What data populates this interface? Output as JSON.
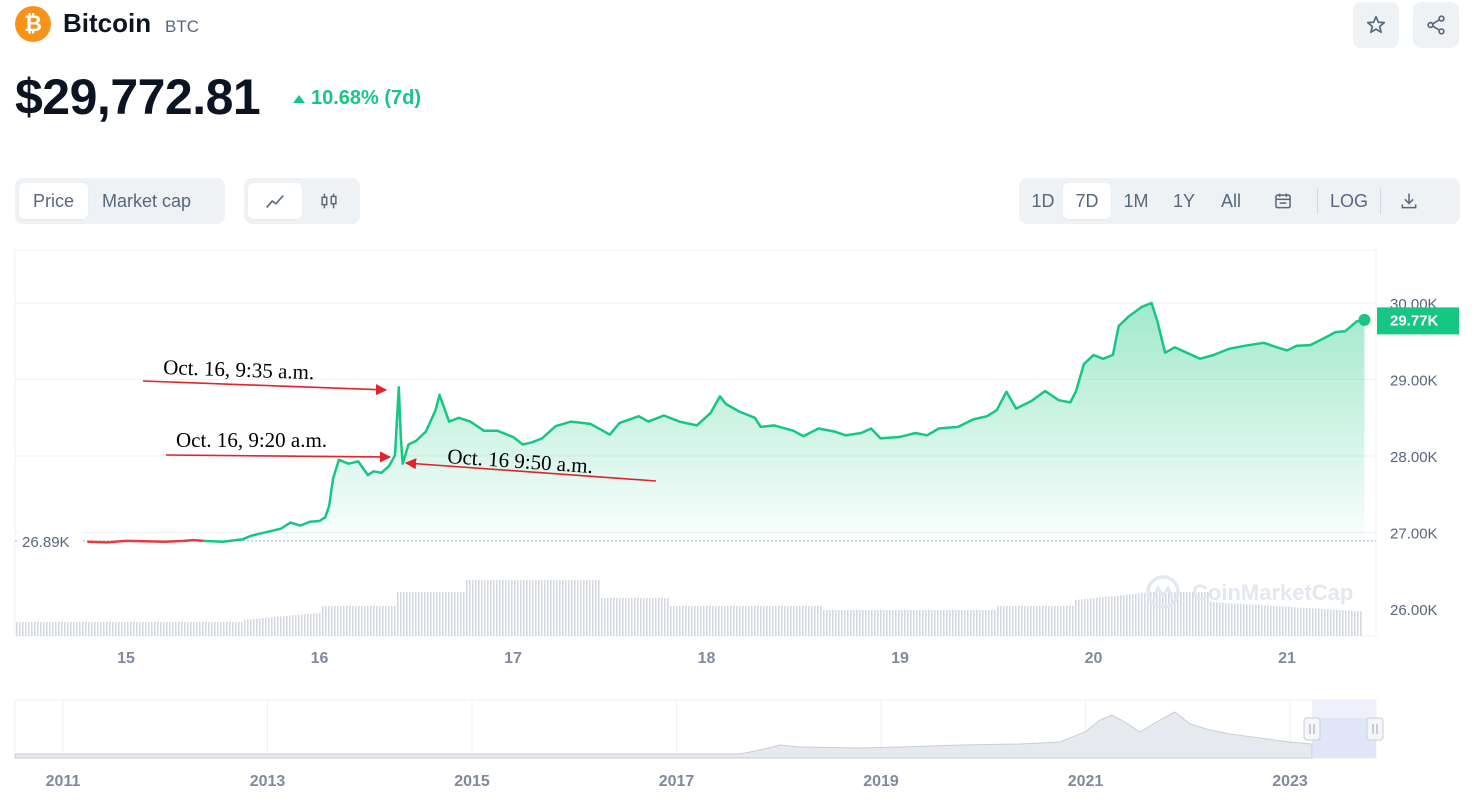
{
  "coin": {
    "name": "Bitcoin",
    "symbol": "BTC",
    "logo_glyph": "₿",
    "price": "$29,772.81",
    "change": "10.68% (7d)",
    "accent_color": "#16c784",
    "down_color": "#ea3943",
    "brand_color": "#f7931a"
  },
  "header_buttons": {
    "star_icon": "☆",
    "share_icon": "⋖"
  },
  "toggles": {
    "metric": [
      "Price",
      "Market cap"
    ],
    "metric_active": "Price",
    "chart_type_icons": [
      "line-chart-icon",
      "candlestick-icon"
    ],
    "ranges": [
      "1D",
      "7D",
      "1M",
      "1Y",
      "All"
    ],
    "range_active": "7D",
    "calendar_icon": "calendar-icon",
    "log_label": "LOG",
    "download_icon": "download-icon"
  },
  "chart_data": {
    "type": "area",
    "title": "",
    "xlabel": "",
    "ylabel": "",
    "x_ticks": [
      "15",
      "16",
      "17",
      "18",
      "19",
      "20",
      "21"
    ],
    "y_ticks": [
      "30.00K",
      "29.00K",
      "28.00K",
      "27.00K",
      "26.00K"
    ],
    "ylim": [
      26000,
      30300
    ],
    "open_label": "26.89K",
    "open_value": 26890,
    "current_label": "29.77K",
    "current_value": 29772.81,
    "watermark": "CoinMarketCap",
    "series": [
      {
        "points": [
          [
            14.8,
            26880
          ],
          [
            14.9,
            26870
          ],
          [
            15.0,
            26890
          ],
          [
            15.1,
            26885
          ],
          [
            15.2,
            26880
          ],
          [
            15.3,
            26890
          ],
          [
            15.35,
            26900
          ],
          [
            15.4,
            26890
          ],
          [
            15.5,
            26880
          ],
          [
            15.6,
            26910
          ],
          [
            15.65,
            26960
          ],
          [
            15.7,
            26990
          ],
          [
            15.8,
            27050
          ],
          [
            15.85,
            27130
          ],
          [
            15.9,
            27090
          ],
          [
            15.95,
            27140
          ],
          [
            16.0,
            27150
          ],
          [
            16.03,
            27200
          ],
          [
            16.05,
            27350
          ],
          [
            16.07,
            27700
          ],
          [
            16.1,
            27950
          ],
          [
            16.15,
            27900
          ],
          [
            16.2,
            27930
          ],
          [
            16.25,
            27750
          ],
          [
            16.28,
            27800
          ],
          [
            16.32,
            27780
          ],
          [
            16.36,
            27870
          ],
          [
            16.39,
            28010
          ],
          [
            16.41,
            28900
          ],
          [
            16.42,
            28250
          ],
          [
            16.43,
            27900
          ],
          [
            16.46,
            28150
          ],
          [
            16.5,
            28200
          ],
          [
            16.55,
            28320
          ],
          [
            16.6,
            28600
          ],
          [
            16.62,
            28800
          ],
          [
            16.67,
            28450
          ],
          [
            16.72,
            28500
          ],
          [
            16.78,
            28450
          ],
          [
            16.85,
            28330
          ],
          [
            16.92,
            28330
          ],
          [
            17.0,
            28250
          ],
          [
            17.05,
            28150
          ],
          [
            17.1,
            28180
          ],
          [
            17.15,
            28230
          ],
          [
            17.22,
            28390
          ],
          [
            17.3,
            28450
          ],
          [
            17.4,
            28420
          ],
          [
            17.45,
            28350
          ],
          [
            17.5,
            28280
          ],
          [
            17.55,
            28430
          ],
          [
            17.65,
            28520
          ],
          [
            17.7,
            28450
          ],
          [
            17.78,
            28530
          ],
          [
            17.86,
            28450
          ],
          [
            17.95,
            28400
          ],
          [
            18.02,
            28560
          ],
          [
            18.07,
            28780
          ],
          [
            18.1,
            28680
          ],
          [
            18.17,
            28580
          ],
          [
            18.25,
            28500
          ],
          [
            18.28,
            28380
          ],
          [
            18.35,
            28400
          ],
          [
            18.45,
            28330
          ],
          [
            18.5,
            28260
          ],
          [
            18.58,
            28360
          ],
          [
            18.66,
            28320
          ],
          [
            18.72,
            28270
          ],
          [
            18.8,
            28300
          ],
          [
            18.85,
            28360
          ],
          [
            18.9,
            28230
          ],
          [
            19.0,
            28250
          ],
          [
            19.08,
            28300
          ],
          [
            19.14,
            28270
          ],
          [
            19.2,
            28360
          ],
          [
            19.3,
            28380
          ],
          [
            19.38,
            28480
          ],
          [
            19.45,
            28520
          ],
          [
            19.5,
            28600
          ],
          [
            19.55,
            28840
          ],
          [
            19.6,
            28620
          ],
          [
            19.68,
            28720
          ],
          [
            19.75,
            28850
          ],
          [
            19.82,
            28730
          ],
          [
            19.88,
            28700
          ],
          [
            19.91,
            28850
          ],
          [
            19.95,
            29200
          ],
          [
            20.0,
            29320
          ],
          [
            20.05,
            29270
          ],
          [
            20.1,
            29320
          ],
          [
            20.13,
            29700
          ],
          [
            20.18,
            29820
          ],
          [
            20.25,
            29950
          ],
          [
            20.3,
            30000
          ],
          [
            20.33,
            29760
          ],
          [
            20.37,
            29350
          ],
          [
            20.42,
            29420
          ],
          [
            20.5,
            29330
          ],
          [
            20.55,
            29270
          ],
          [
            20.62,
            29320
          ],
          [
            20.7,
            29400
          ],
          [
            20.78,
            29440
          ],
          [
            20.88,
            29480
          ],
          [
            20.95,
            29420
          ],
          [
            21.0,
            29380
          ],
          [
            21.05,
            29440
          ],
          [
            21.12,
            29450
          ],
          [
            21.2,
            29550
          ],
          [
            21.25,
            29620
          ],
          [
            21.3,
            29630
          ],
          [
            21.36,
            29760
          ],
          [
            21.4,
            29780
          ]
        ]
      }
    ],
    "red_segment_until": 15.45
  },
  "navigator": {
    "x_ticks": [
      "2011",
      "2013",
      "2015",
      "2017",
      "2019",
      "2021",
      "2023"
    ]
  },
  "annotations": [
    {
      "text": "Oct. 16, 9:35 a.m."
    },
    {
      "text": "Oct. 16, 9:20 a.m."
    },
    {
      "text": "Oct. 16 9:50 a.m."
    }
  ]
}
